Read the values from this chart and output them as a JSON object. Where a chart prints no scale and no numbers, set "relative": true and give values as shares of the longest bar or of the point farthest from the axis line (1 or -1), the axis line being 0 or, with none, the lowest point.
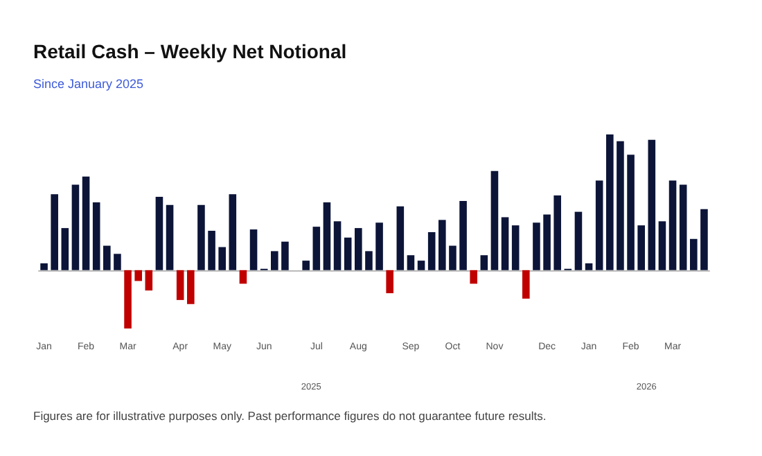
{
  "chart_data": {
    "type": "bar",
    "title": "Retail Cash – Weekly Net Notional",
    "subtitle": "Since January 2025",
    "relative": true,
    "categories": [
      "Jan",
      null,
      null,
      null,
      "Feb",
      null,
      null,
      null,
      "Mar",
      null,
      null,
      null,
      null,
      "Apr",
      null,
      null,
      null,
      "May",
      null,
      null,
      null,
      "Jun",
      null,
      null,
      null,
      null,
      "Jul",
      null,
      null,
      null,
      "Aug",
      null,
      null,
      null,
      null,
      "Sep",
      null,
      null,
      null,
      "Oct",
      null,
      null,
      null,
      "Nov",
      null,
      null,
      null,
      null,
      "Dec",
      null,
      null,
      null,
      "Jan",
      null,
      null,
      null,
      "Feb",
      null,
      null,
      null,
      "Mar",
      null,
      null,
      null
    ],
    "values": [
      0.05,
      0.56,
      0.31,
      0.63,
      0.69,
      0.5,
      0.18,
      0.12,
      -0.43,
      -0.08,
      -0.15,
      0.54,
      0.48,
      -0.22,
      -0.25,
      0.48,
      0.29,
      0.17,
      0.56,
      -0.1,
      0.3,
      0.01,
      0.14,
      0.21,
      null,
      0.07,
      0.32,
      0.5,
      0.36,
      0.24,
      0.31,
      0.14,
      0.35,
      -0.17,
      0.47,
      0.11,
      0.07,
      0.28,
      0.37,
      0.18,
      0.51,
      -0.1,
      0.11,
      0.73,
      0.39,
      0.33,
      -0.21,
      0.35,
      0.41,
      0.55,
      0.01,
      0.43,
      0.05,
      0.66,
      1.0,
      0.95,
      0.85,
      0.33,
      0.96,
      0.36,
      0.66,
      0.63,
      0.23,
      0.45
    ],
    "colors": [
      "#0c1538",
      "#0c1538",
      "#0c1538",
      "#0c1538",
      "#0c1538",
      "#0c1538",
      "#0c1538",
      "#0c1538",
      "#c00000",
      "#c00000",
      "#c00000",
      "#0c1538",
      "#0c1538",
      "#c00000",
      "#c00000",
      "#0c1538",
      "#0c1538",
      "#0c1538",
      "#0c1538",
      "#c00000",
      "#0c1538",
      "#0c1538",
      "#0c1538",
      "#0c1538",
      "#0c1538",
      "#0c1538",
      "#0c1538",
      "#0c1538",
      "#0c1538",
      "#0c1538",
      "#0c1538",
      "#0c1538",
      "#0c1538",
      "#c00000",
      "#0c1538",
      "#0c1538",
      "#0c1538",
      "#0c1538",
      "#0c1538",
      "#0c1538",
      "#0c1538",
      "#c00000",
      "#0c1538",
      "#0c1538",
      "#0c1538",
      "#0c1538",
      "#c00000",
      "#0c1538",
      "#0c1538",
      "#0c1538",
      "#0c1538",
      "#0c1538",
      "#0c1538",
      "#0c1538",
      "#0c1538",
      "#0c1538",
      "#0c1538",
      "#0c1538",
      "#0c1538",
      "#0c1538",
      "#0c1538",
      "#0c1538",
      "#0c1538",
      "#0c1538"
    ],
    "annotations": [
      "2025",
      "2026",
      "Figures are for illustrative purposes only. Past performance figures do not guarantee future results."
    ]
  }
}
